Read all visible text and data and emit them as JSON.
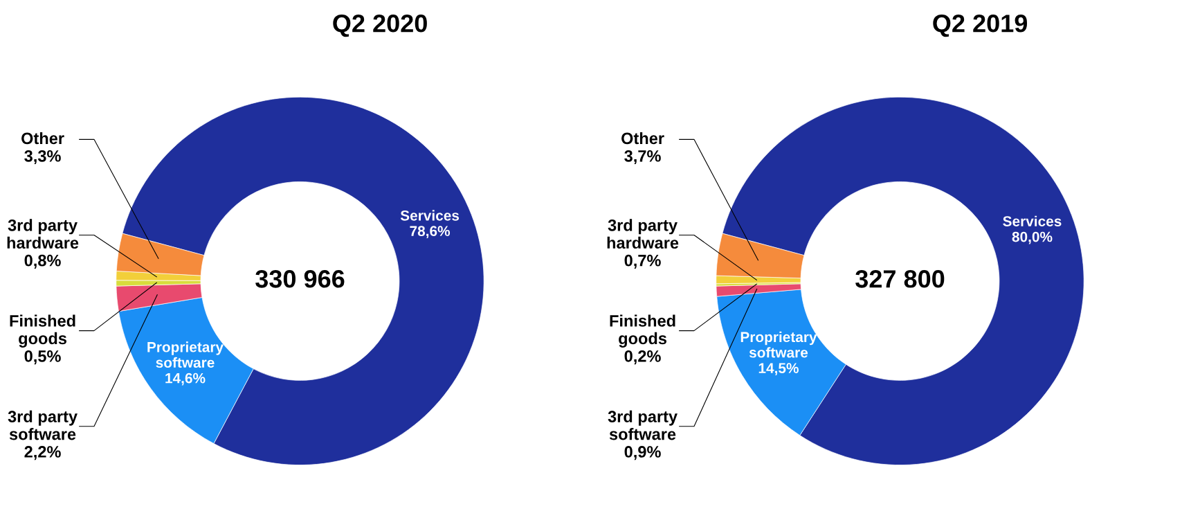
{
  "chart_data": [
    {
      "type": "donut",
      "title": "Q2 2020",
      "categories": [
        "Services",
        "Proprietary\nsoftware",
        "3rd party\nsoftware",
        "Finished\ngoods",
        "3rd party\nhardware",
        "Other"
      ],
      "values": [
        78.6,
        14.6,
        2.2,
        0.5,
        0.8,
        3.3
      ],
      "value_labels": [
        "78,6%",
        "14,6%",
        "2,2%",
        "0,5%",
        "0,8%",
        "3,3%"
      ],
      "colors": [
        "#1f2f9c",
        "#1b8ff5",
        "#e84a6e",
        "#d8dc3c",
        "#f2cf3a",
        "#f58b3c"
      ],
      "annotations": [
        "330 966"
      ],
      "legend": false
    },
    {
      "type": "donut",
      "title": "Q2 2019",
      "categories": [
        "Services",
        "Proprietary\nsoftware",
        "3rd party\nsoftware",
        "Finished\ngoods",
        "3rd party\nhardware",
        "Other"
      ],
      "values": [
        80.0,
        14.5,
        0.9,
        0.2,
        0.7,
        3.7
      ],
      "value_labels": [
        "80,0%",
        "14,5%",
        "0,9%",
        "0,2%",
        "0,7%",
        "3,7%"
      ],
      "colors": [
        "#1f2f9c",
        "#1b8ff5",
        "#e84a6e",
        "#d8dc3c",
        "#f2cf3a",
        "#f58b3c"
      ],
      "annotations": [
        "327 800"
      ],
      "legend": false
    }
  ]
}
